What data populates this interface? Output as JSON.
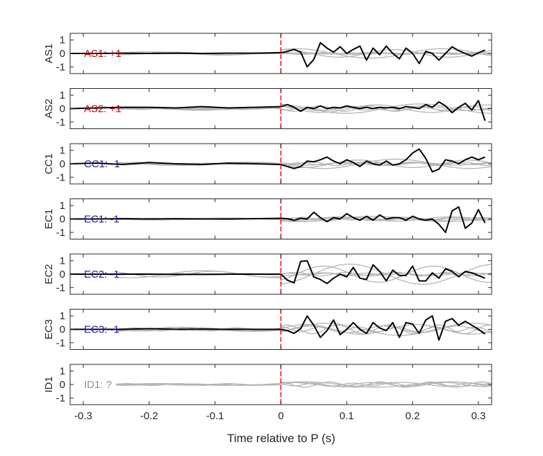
{
  "chart_data": {
    "type": "line",
    "xlabel": "Time relative to P (s)",
    "xlim": [
      -0.32,
      0.32
    ],
    "x_ticks": [
      -0.3,
      -0.2,
      -0.1,
      0,
      0.1,
      0.2,
      0.3
    ],
    "x_tick_labels": [
      "-0.3",
      "-0.2",
      "-0.1",
      "0",
      "0.1",
      "0.2",
      "0.3"
    ],
    "ylim": [
      -1.5,
      1.5
    ],
    "y_ticks": [
      1,
      0,
      -1
    ],
    "y_tick_labels": [
      "1",
      "0",
      "-1"
    ],
    "marker_time": 0,
    "colors": {
      "stack": "#000000",
      "traces": "#b4b4b4",
      "marker": "#ff0000",
      "positive": "#c00000",
      "negative": "#1a1aa0",
      "unknown": "#909090",
      "axes": "#262626"
    },
    "panels": [
      {
        "ylabel": "AS1",
        "annotation": "AS1: +1",
        "polarity": "positive",
        "stack_x": [
          -0.32,
          -0.28,
          -0.24,
          -0.2,
          -0.16,
          -0.12,
          -0.08,
          -0.04,
          0,
          0.01,
          0.02,
          0.03,
          0.04,
          0.05,
          0.06,
          0.07,
          0.08,
          0.09,
          0.1,
          0.11,
          0.12,
          0.13,
          0.14,
          0.15,
          0.16,
          0.17,
          0.18,
          0.19,
          0.2,
          0.21,
          0.22,
          0.23,
          0.24,
          0.25,
          0.26,
          0.27,
          0.28,
          0.29,
          0.3,
          0.31
        ],
        "stack_y": [
          0,
          0,
          0.02,
          0,
          0.02,
          0,
          0.02,
          0.02,
          0.05,
          0.15,
          0.3,
          0.1,
          -1.0,
          -0.45,
          0.8,
          0.4,
          0.1,
          0.5,
          0.0,
          0.3,
          0.55,
          -0.5,
          0.4,
          -0.1,
          0.55,
          0.0,
          -0.4,
          0.4,
          0.0,
          -0.75,
          0.15,
          0.0,
          -0.5,
          0.0,
          0.5,
          0.2,
          0.0,
          -0.2,
          0.05,
          0.25
        ],
        "trace_amp": [
          0.05,
          0.35
        ]
      },
      {
        "ylabel": "AS2",
        "annotation": "AS2: +1",
        "polarity": "positive",
        "stack_x": [
          -0.32,
          -0.28,
          -0.24,
          -0.2,
          -0.16,
          -0.12,
          -0.08,
          -0.04,
          0,
          0.01,
          0.02,
          0.03,
          0.04,
          0.05,
          0.06,
          0.07,
          0.08,
          0.09,
          0.1,
          0.11,
          0.12,
          0.13,
          0.14,
          0.15,
          0.16,
          0.17,
          0.18,
          0.19,
          0.2,
          0.21,
          0.22,
          0.23,
          0.24,
          0.25,
          0.26,
          0.27,
          0.28,
          0.29,
          0.3,
          0.31
        ],
        "stack_y": [
          0,
          0.05,
          0.1,
          0.1,
          0.05,
          0.15,
          0.05,
          0.1,
          0.15,
          0.3,
          0.1,
          -0.2,
          0.1,
          0.0,
          0.2,
          0.0,
          0.1,
          0.05,
          0.2,
          0.1,
          0.0,
          0.1,
          0.0,
          0.1,
          0.05,
          0.1,
          0.0,
          0.15,
          0.1,
          0.0,
          0.3,
          0.1,
          0.5,
          0.2,
          -0.3,
          0.1,
          0.4,
          -0.1,
          0.6,
          -0.9
        ],
        "trace_amp": [
          0.15,
          0.35
        ]
      },
      {
        "ylabel": "CC1",
        "annotation": "CC1: -1",
        "polarity": "negative",
        "stack_x": [
          -0.32,
          -0.28,
          -0.24,
          -0.2,
          -0.16,
          -0.12,
          -0.08,
          -0.04,
          0,
          0.01,
          0.02,
          0.03,
          0.04,
          0.05,
          0.06,
          0.07,
          0.08,
          0.09,
          0.1,
          0.11,
          0.12,
          0.13,
          0.14,
          0.15,
          0.16,
          0.17,
          0.18,
          0.19,
          0.2,
          0.21,
          0.22,
          0.23,
          0.24,
          0.25,
          0.26,
          0.27,
          0.28,
          0.29,
          0.3,
          0.31
        ],
        "stack_y": [
          0,
          0.05,
          -0.05,
          0.1,
          0.0,
          -0.05,
          0.05,
          0.0,
          -0.05,
          -0.2,
          -0.35,
          -0.2,
          0.2,
          0.15,
          0.3,
          0.5,
          0.2,
          0.0,
          0.3,
          0.1,
          -0.2,
          0.2,
          0.0,
          -0.1,
          0.2,
          -0.1,
          0.0,
          0.3,
          0.8,
          1.1,
          0.4,
          -0.6,
          -0.4,
          0.3,
          0.2,
          0.0,
          0.3,
          0.5,
          0.3,
          0.5
        ],
        "trace_amp": [
          0.1,
          0.35
        ]
      },
      {
        "ylabel": "EC1",
        "annotation": "EC1: -1",
        "polarity": "negative",
        "stack_x": [
          -0.32,
          -0.28,
          -0.24,
          -0.2,
          -0.16,
          -0.12,
          -0.08,
          -0.04,
          0,
          0.01,
          0.02,
          0.03,
          0.04,
          0.05,
          0.06,
          0.07,
          0.08,
          0.09,
          0.1,
          0.11,
          0.12,
          0.13,
          0.14,
          0.15,
          0.16,
          0.17,
          0.18,
          0.19,
          0.2,
          0.21,
          0.22,
          0.23,
          0.24,
          0.25,
          0.26,
          0.27,
          0.28,
          0.29,
          0.3,
          0.31
        ],
        "stack_y": [
          0,
          0,
          0.02,
          0,
          0.02,
          0,
          0,
          0.02,
          0.05,
          0.02,
          -0.1,
          0.05,
          0.0,
          0.5,
          0.1,
          -0.2,
          0.1,
          0.0,
          0.4,
          0.1,
          -0.1,
          0.2,
          -0.1,
          0.3,
          0.0,
          0.1,
          0.1,
          -0.1,
          0.2,
          0.0,
          -0.1,
          0.0,
          -0.4,
          -1.0,
          0.6,
          0.9,
          -0.7,
          -0.3,
          0.7,
          -0.3
        ],
        "trace_amp": [
          0.1,
          0.2
        ]
      },
      {
        "ylabel": "EC2",
        "annotation": "EC2: -1",
        "polarity": "negative",
        "stack_x": [
          -0.32,
          -0.28,
          -0.24,
          -0.2,
          -0.16,
          -0.12,
          -0.08,
          -0.04,
          0,
          0.01,
          0.02,
          0.03,
          0.04,
          0.05,
          0.06,
          0.07,
          0.08,
          0.09,
          0.1,
          0.11,
          0.12,
          0.13,
          0.14,
          0.15,
          0.16,
          0.17,
          0.18,
          0.19,
          0.2,
          0.21,
          0.22,
          0.23,
          0.24,
          0.25,
          0.26,
          0.27,
          0.28,
          0.29,
          0.3,
          0.31
        ],
        "stack_y": [
          0,
          0,
          0,
          0,
          -0.02,
          -0.02,
          0,
          0,
          0,
          -0.45,
          -0.65,
          0.95,
          1.0,
          -0.2,
          -0.4,
          -0.7,
          -0.3,
          0.0,
          -0.2,
          0.5,
          -0.3,
          -0.4,
          0.7,
          0.2,
          -0.5,
          0.3,
          -0.1,
          -0.1,
          0.6,
          -0.5,
          -0.5,
          0.1,
          -0.3,
          0.4,
          0.2,
          -0.2,
          0.2,
          0.1,
          -0.1,
          -0.3
        ],
        "trace_amp": [
          0.1,
          0.75
        ]
      },
      {
        "ylabel": "EC3",
        "annotation": "EC3: -1",
        "polarity": "negative",
        "stack_x": [
          -0.32,
          -0.28,
          -0.24,
          -0.2,
          -0.16,
          -0.12,
          -0.08,
          -0.04,
          0,
          0.01,
          0.02,
          0.03,
          0.04,
          0.05,
          0.06,
          0.07,
          0.08,
          0.09,
          0.1,
          0.11,
          0.12,
          0.13,
          0.14,
          0.15,
          0.16,
          0.17,
          0.18,
          0.19,
          0.2,
          0.21,
          0.22,
          0.23,
          0.24,
          0.25,
          0.26,
          0.27,
          0.28,
          0.29,
          0.3,
          0.31
        ],
        "stack_y": [
          0,
          0,
          0,
          0.05,
          0,
          0.02,
          0,
          0,
          0,
          -0.1,
          -0.3,
          0.05,
          1.0,
          0.3,
          -0.6,
          -0.1,
          0.7,
          -0.4,
          0.0,
          0.5,
          0.0,
          -0.3,
          0.5,
          0.1,
          -0.1,
          0.5,
          -0.6,
          0.5,
          0.4,
          -0.3,
          0.7,
          1.0,
          -0.8,
          0.6,
          0.8,
          0.3,
          0.6,
          0.3,
          0.0,
          -0.35
        ],
        "trace_amp": [
          0.25,
          0.45
        ]
      },
      {
        "ylabel": "ID1",
        "annotation": "ID1: ?",
        "polarity": "unknown",
        "stack_x": [],
        "stack_y": [],
        "trace_amp": [
          0.15,
          0.2
        ]
      }
    ]
  }
}
